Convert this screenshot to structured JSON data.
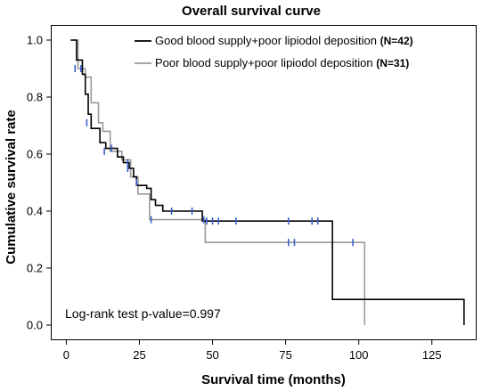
{
  "chart_data": {
    "type": "line",
    "subtype": "kaplan-meier step",
    "title": "Overall survival curve",
    "xlabel": "Survival time (months)",
    "ylabel": "Cumulative survival rate",
    "xlim": [
      -5,
      140
    ],
    "ylim": [
      -0.05,
      1.05
    ],
    "x_ticks": [
      0,
      25,
      50,
      75,
      100,
      125
    ],
    "y_ticks": [
      0.0,
      0.2,
      0.4,
      0.6,
      0.8,
      1.0
    ],
    "y_tick_labels": [
      "0.0",
      "0.2",
      "0.4",
      "0.6",
      "0.8",
      "1.0"
    ],
    "grid": false,
    "legend_position": "top-right",
    "annotation": "Log-rank test p-value=0.997",
    "censor_color": "#3a5fcd",
    "series": [
      {
        "name": "Good blood supply+poor lipiodol deposition",
        "n_label": "(N=42)",
        "color": "#000000",
        "steps": [
          [
            1.5,
            1.0
          ],
          [
            3.5,
            0.93
          ],
          [
            5.5,
            0.88
          ],
          [
            6.5,
            0.81
          ],
          [
            7.5,
            0.74
          ],
          [
            8.5,
            0.69
          ],
          [
            11.5,
            0.64
          ],
          [
            13.5,
            0.62
          ],
          [
            17.5,
            0.59
          ],
          [
            19.5,
            0.57
          ],
          [
            21.5,
            0.55
          ],
          [
            23.0,
            0.52
          ],
          [
            24.0,
            0.49
          ],
          [
            27.5,
            0.48
          ],
          [
            29.0,
            0.44
          ],
          [
            30.5,
            0.42
          ],
          [
            33.0,
            0.4
          ],
          [
            46.5,
            0.365
          ],
          [
            91.0,
            0.09
          ],
          [
            136.0,
            0.0
          ]
        ],
        "censored": [
          [
            15.5,
            0.62
          ],
          [
            21.0,
            0.57
          ],
          [
            36.0,
            0.4
          ],
          [
            43.0,
            0.4
          ],
          [
            48.0,
            0.365
          ],
          [
            50.0,
            0.365
          ],
          [
            52.0,
            0.365
          ],
          [
            58.0,
            0.365
          ],
          [
            76.0,
            0.365
          ],
          [
            84.0,
            0.365
          ],
          [
            86.0,
            0.365
          ]
        ]
      },
      {
        "name": "Poor blood supply+poor lipiodol deposition",
        "n_label": "(N=31)",
        "color": "#9a9a9a",
        "steps": [
          [
            1.5,
            1.0
          ],
          [
            4.0,
            0.9
          ],
          [
            6.5,
            0.87
          ],
          [
            8.5,
            0.78
          ],
          [
            11.0,
            0.71
          ],
          [
            12.5,
            0.68
          ],
          [
            15.0,
            0.61
          ],
          [
            19.0,
            0.58
          ],
          [
            22.0,
            0.52
          ],
          [
            24.5,
            0.46
          ],
          [
            28.5,
            0.37
          ],
          [
            47.5,
            0.29
          ],
          [
            102.0,
            0.0
          ]
        ],
        "censored": [
          [
            3.0,
            0.9
          ],
          [
            5.0,
            0.9
          ],
          [
            7.0,
            0.71
          ],
          [
            13.0,
            0.61
          ],
          [
            21.0,
            0.55
          ],
          [
            24.0,
            0.5
          ],
          [
            29.0,
            0.37
          ],
          [
            47.0,
            0.37
          ],
          [
            76.0,
            0.29
          ],
          [
            78.0,
            0.29
          ],
          [
            98.0,
            0.29
          ]
        ]
      }
    ]
  }
}
